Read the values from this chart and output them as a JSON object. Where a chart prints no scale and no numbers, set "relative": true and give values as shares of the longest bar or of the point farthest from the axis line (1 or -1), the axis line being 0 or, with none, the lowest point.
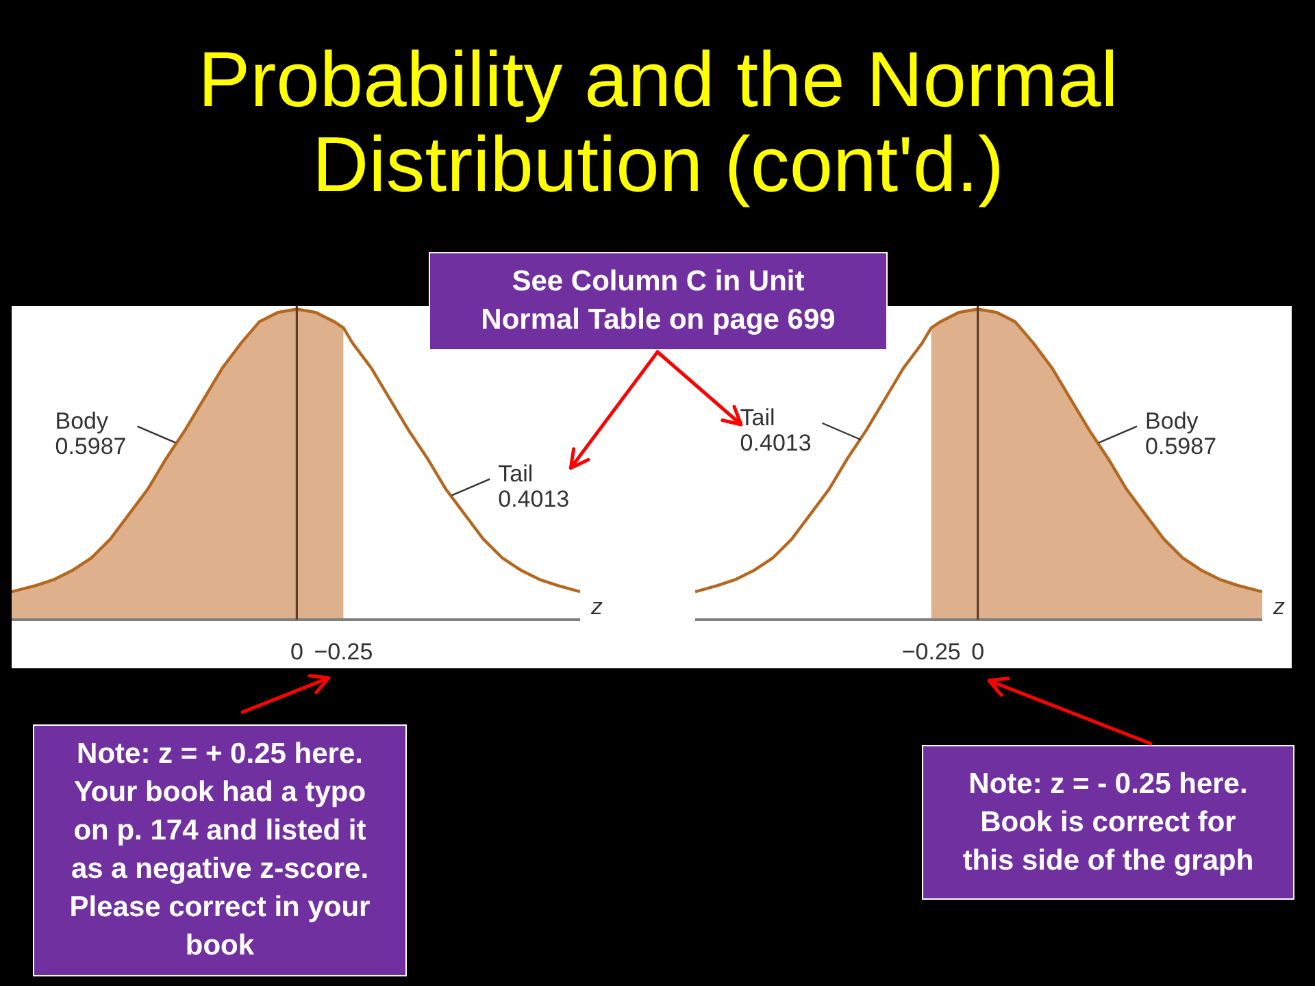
{
  "chart_data": [
    {
      "type": "area",
      "title": "Probability and the Normal Distribution (cont'd.)",
      "xlabel": "z",
      "relative": true,
      "xlim": [
        1.53,
        -1.52
      ],
      "xticks": [
        0,
        {
          "value": -0.25,
          "label": "−0.25"
        }
      ],
      "series": [
        {
          "color": "#deb08b",
          "x": [
            1.53,
            1.4,
            1.3,
            1.2,
            1.1,
            1.0,
            0.9,
            0.8,
            0.7,
            0.6,
            0.5,
            0.4,
            0.3,
            0.2,
            0.1,
            0,
            -0.1,
            -0.2,
            -0.25
          ],
          "values": [
            0.09,
            0.11,
            0.13,
            0.16,
            0.2,
            0.26,
            0.34,
            0.42,
            0.52,
            0.61,
            0.71,
            0.81,
            0.89,
            0.96,
            0.99,
            1.0,
            0.99,
            0.96,
            0.94
          ]
        },
        {
          "type": "line",
          "color": "#b5671f",
          "x": [
            1.53,
            1.4,
            1.3,
            1.2,
            1.1,
            1.0,
            0.9,
            0.8,
            0.7,
            0.6,
            0.5,
            0.4,
            0.3,
            0.2,
            0.1,
            0,
            -0.1,
            -0.2,
            -0.25,
            -0.3,
            -0.4,
            -0.5,
            -0.6,
            -0.7,
            -0.8,
            -0.9,
            -1.0,
            -1.1,
            -1.2,
            -1.3,
            -1.4,
            -1.52
          ],
          "values": [
            0.09,
            0.11,
            0.13,
            0.16,
            0.2,
            0.26,
            0.34,
            0.42,
            0.52,
            0.61,
            0.71,
            0.81,
            0.89,
            0.96,
            0.99,
            1.0,
            0.99,
            0.96,
            0.94,
            0.89,
            0.81,
            0.71,
            0.61,
            0.52,
            0.42,
            0.34,
            0.26,
            0.2,
            0.16,
            0.13,
            0.11,
            0.09
          ]
        }
      ],
      "ref_lines": [
        {
          "axis": "x",
          "value": 0,
          "color": "#5c3b2b"
        }
      ],
      "annotations": [
        {
          "text": "Body 0.5987",
          "x": 0.65,
          "y": 0.57
        },
        {
          "text": "Tail 0.4013",
          "x": -0.83,
          "y": 0.4
        },
        "See Column C in Unit Normal Table on page 699",
        "Note: z = + 0.25 here. Your book had a typo on p. 174 and listed it as a negative z-score. Please correct in your book"
      ]
    },
    {
      "type": "area",
      "xlabel": "z",
      "relative": true,
      "xlim": [
        -1.52,
        1.53
      ],
      "xticks": [
        {
          "value": -0.25,
          "label": "−0.25"
        },
        0
      ],
      "series": [
        {
          "color": "#deb08b",
          "x": [
            -0.25,
            -0.2,
            -0.1,
            0,
            0.1,
            0.2,
            0.3,
            0.4,
            0.5,
            0.6,
            0.7,
            0.8,
            0.9,
            1.0,
            1.1,
            1.2,
            1.3,
            1.4,
            1.53
          ],
          "values": [
            0.94,
            0.96,
            0.99,
            1.0,
            0.99,
            0.96,
            0.89,
            0.81,
            0.71,
            0.61,
            0.52,
            0.42,
            0.34,
            0.26,
            0.2,
            0.16,
            0.13,
            0.11,
            0.09
          ]
        },
        {
          "type": "line",
          "color": "#b5671f",
          "x": [
            -1.52,
            -1.4,
            -1.3,
            -1.2,
            -1.1,
            -1.0,
            -0.9,
            -0.8,
            -0.7,
            -0.6,
            -0.5,
            -0.4,
            -0.3,
            -0.25,
            -0.2,
            -0.1,
            0,
            0.1,
            0.2,
            0.3,
            0.4,
            0.5,
            0.6,
            0.7,
            0.8,
            0.9,
            1.0,
            1.1,
            1.2,
            1.3,
            1.4,
            1.53
          ],
          "values": [
            0.09,
            0.11,
            0.13,
            0.16,
            0.2,
            0.26,
            0.34,
            0.42,
            0.52,
            0.61,
            0.71,
            0.81,
            0.89,
            0.94,
            0.96,
            0.99,
            1.0,
            0.99,
            0.96,
            0.89,
            0.81,
            0.71,
            0.61,
            0.52,
            0.42,
            0.34,
            0.26,
            0.2,
            0.16,
            0.13,
            0.11,
            0.09
          ]
        }
      ],
      "ref_lines": [
        {
          "axis": "x",
          "value": 0,
          "color": "#5c3b2b"
        }
      ],
      "annotations": [
        {
          "text": "Tail 0.4013",
          "x": -0.63,
          "y": 0.58
        },
        {
          "text": "Body 0.5987",
          "x": 0.65,
          "y": 0.57
        },
        "Note: z = - 0.25 here. Book is correct for this side of the graph"
      ]
    }
  ]
}
